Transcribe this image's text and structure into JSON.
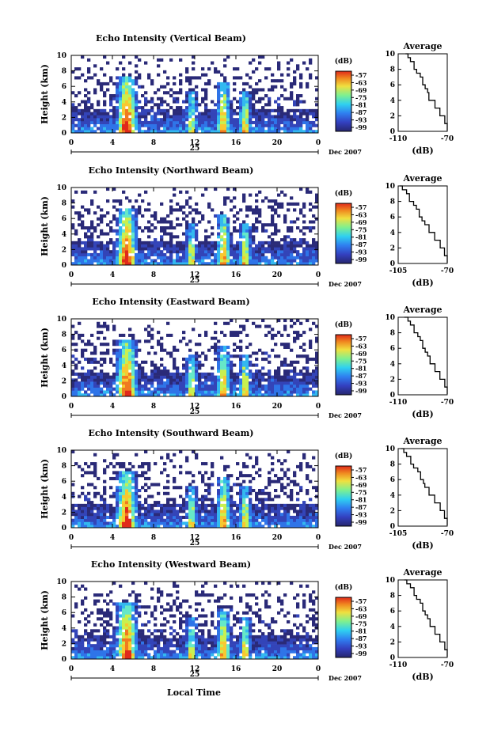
{
  "figure": {
    "xlabel": "Local Time",
    "day_label": "25",
    "date_label": "Dec 2007",
    "ylabel": "Height (km)",
    "cbar_unit": "(dB)",
    "avg_title": "Average",
    "avg_xlabel": "(dB)"
  },
  "chart_data": [
    {
      "type": "heatmap",
      "title": "Echo Intensity (Vertical Beam)",
      "xlabel": "Local Time",
      "ylabel": "Height (km)",
      "xlim": [
        0,
        24
      ],
      "ylim": [
        0,
        10
      ],
      "xticks": [
        "0",
        "4",
        "8",
        "12",
        "16",
        "20",
        "0"
      ],
      "yticks": [
        "0",
        "2",
        "4",
        "6",
        "8",
        "10"
      ],
      "colorbar": {
        "label": "(dB)",
        "ticks": [
          "-57",
          "-63",
          "-69",
          "-75",
          "-81",
          "-87",
          "-93",
          "-99"
        ]
      },
      "strong_echo_periods_hours": [
        [
          4.5,
          6.5
        ],
        [
          11,
          13
        ],
        [
          14,
          18
        ]
      ],
      "average_profile": {
        "title": "Average",
        "xlabel": "(dB)",
        "xlim": [
          -110,
          -70
        ],
        "xticks": [
          "-110",
          "-70"
        ],
        "yticks": [
          "0",
          "2",
          "4",
          "6",
          "8",
          "10"
        ],
        "x": [
          -104,
          -102,
          -100,
          -97,
          -95,
          -92,
          -90,
          -88,
          -86,
          -85,
          -80,
          -76,
          -72,
          -70
        ],
        "y": [
          10,
          9.5,
          9,
          8,
          7.5,
          7,
          6,
          5.5,
          5,
          4,
          3,
          2,
          1,
          0.5
        ]
      }
    },
    {
      "type": "heatmap",
      "title": "Echo Intensity (Northward Beam)",
      "xlabel": "Local Time",
      "ylabel": "Height (km)",
      "xlim": [
        0,
        24
      ],
      "ylim": [
        0,
        10
      ],
      "xticks": [
        "0",
        "4",
        "8",
        "12",
        "16",
        "20",
        "0"
      ],
      "yticks": [
        "0",
        "2",
        "4",
        "6",
        "8",
        "10"
      ],
      "colorbar": {
        "label": "(dB)",
        "ticks": [
          "-57",
          "-63",
          "-69",
          "-75",
          "-81",
          "-87",
          "-93",
          "-99"
        ]
      },
      "strong_echo_periods_hours": [
        [
          4.5,
          6.5
        ],
        [
          11,
          13
        ],
        [
          14,
          18
        ]
      ],
      "average_profile": {
        "title": "Average",
        "xlabel": "(dB)",
        "xlim": [
          -105,
          -70
        ],
        "xticks": [
          "-105",
          "-70"
        ],
        "yticks": [
          "0",
          "2",
          "4",
          "6",
          "8",
          "10"
        ],
        "x": [
          -104,
          -102,
          -99,
          -97,
          -94,
          -92,
          -90,
          -88,
          -86,
          -83,
          -79,
          -75,
          -72,
          -70
        ],
        "y": [
          10,
          9.5,
          9,
          8,
          7.5,
          7,
          6,
          5.5,
          5,
          4,
          3,
          2,
          1,
          0.5
        ]
      }
    },
    {
      "type": "heatmap",
      "title": "Echo Intensity (Eastward Beam)",
      "xlabel": "Local Time",
      "ylabel": "Height (km)",
      "xlim": [
        0,
        24
      ],
      "ylim": [
        0,
        10
      ],
      "xticks": [
        "0",
        "4",
        "8",
        "12",
        "16",
        "20",
        "0"
      ],
      "yticks": [
        "0",
        "2",
        "4",
        "6",
        "8",
        "10"
      ],
      "colorbar": {
        "label": "(dB)",
        "ticks": [
          "-57",
          "-63",
          "-69",
          "-75",
          "-81",
          "-87",
          "-93",
          "-99"
        ]
      },
      "strong_echo_periods_hours": [
        [
          4.5,
          6.5
        ],
        [
          11,
          13
        ],
        [
          14,
          18
        ]
      ],
      "average_profile": {
        "title": "Average",
        "xlabel": "(dB)",
        "xlim": [
          -110,
          -70
        ],
        "xticks": [
          "-110",
          "-70"
        ],
        "yticks": [
          "0",
          "2",
          "4",
          "6",
          "8",
          "10"
        ],
        "x": [
          -105,
          -102,
          -100,
          -97,
          -94,
          -92,
          -90,
          -88,
          -86,
          -84,
          -80,
          -76,
          -72,
          -70
        ],
        "y": [
          10,
          9.5,
          9,
          8,
          7.5,
          7,
          6,
          5.5,
          5,
          4,
          3,
          2,
          1,
          0.5
        ]
      }
    },
    {
      "type": "heatmap",
      "title": "Echo Intensity (Southward Beam)",
      "xlabel": "Local Time",
      "ylabel": "Height (km)",
      "xlim": [
        0,
        24
      ],
      "ylim": [
        0,
        10
      ],
      "xticks": [
        "0",
        "4",
        "8",
        "12",
        "16",
        "20",
        "0"
      ],
      "yticks": [
        "0",
        "2",
        "4",
        "6",
        "8",
        "10"
      ],
      "colorbar": {
        "label": "(dB)",
        "ticks": [
          "-57",
          "-63",
          "-69",
          "-75",
          "-81",
          "-87",
          "-93",
          "-99"
        ]
      },
      "strong_echo_periods_hours": [
        [
          4.5,
          6.5
        ],
        [
          11,
          13
        ],
        [
          14,
          18
        ]
      ],
      "average_profile": {
        "title": "Average",
        "xlabel": "(dB)",
        "xlim": [
          -105,
          -70
        ],
        "xticks": [
          "-105",
          "-70"
        ],
        "yticks": [
          "0",
          "2",
          "4",
          "6",
          "8",
          "10"
        ],
        "x": [
          -103,
          -101,
          -99,
          -96,
          -94,
          -91,
          -89,
          -87,
          -86,
          -83,
          -79,
          -75,
          -72,
          -70
        ],
        "y": [
          10,
          9.5,
          9,
          8,
          7.5,
          7,
          6,
          5.5,
          5,
          4,
          3,
          2,
          1,
          0.5
        ]
      }
    },
    {
      "type": "heatmap",
      "title": "Echo Intensity (Westward Beam)",
      "xlabel": "Local Time",
      "ylabel": "Height (km)",
      "xlim": [
        0,
        24
      ],
      "ylim": [
        0,
        10
      ],
      "xticks": [
        "0",
        "4",
        "8",
        "12",
        "16",
        "20",
        "0"
      ],
      "yticks": [
        "0",
        "2",
        "4",
        "6",
        "8",
        "10"
      ],
      "colorbar": {
        "label": "(dB)",
        "ticks": [
          "-57",
          "-63",
          "-69",
          "-75",
          "-81",
          "-87",
          "-93",
          "-99"
        ]
      },
      "strong_echo_periods_hours": [
        [
          4.5,
          6.5
        ],
        [
          11,
          13
        ],
        [
          14,
          18
        ]
      ],
      "average_profile": {
        "title": "Average",
        "xlabel": "(dB)",
        "xlim": [
          -110,
          -70
        ],
        "xticks": [
          "-110",
          "-70"
        ],
        "yticks": [
          "0",
          "2",
          "4",
          "6",
          "8",
          "10"
        ],
        "x": [
          -105,
          -103,
          -100,
          -97,
          -95,
          -92,
          -90,
          -88,
          -86,
          -84,
          -80,
          -76,
          -72,
          -70
        ],
        "y": [
          10,
          9.5,
          9,
          8,
          7.5,
          7,
          6,
          5.5,
          5,
          4,
          3,
          2,
          1,
          0.5
        ]
      }
    }
  ]
}
